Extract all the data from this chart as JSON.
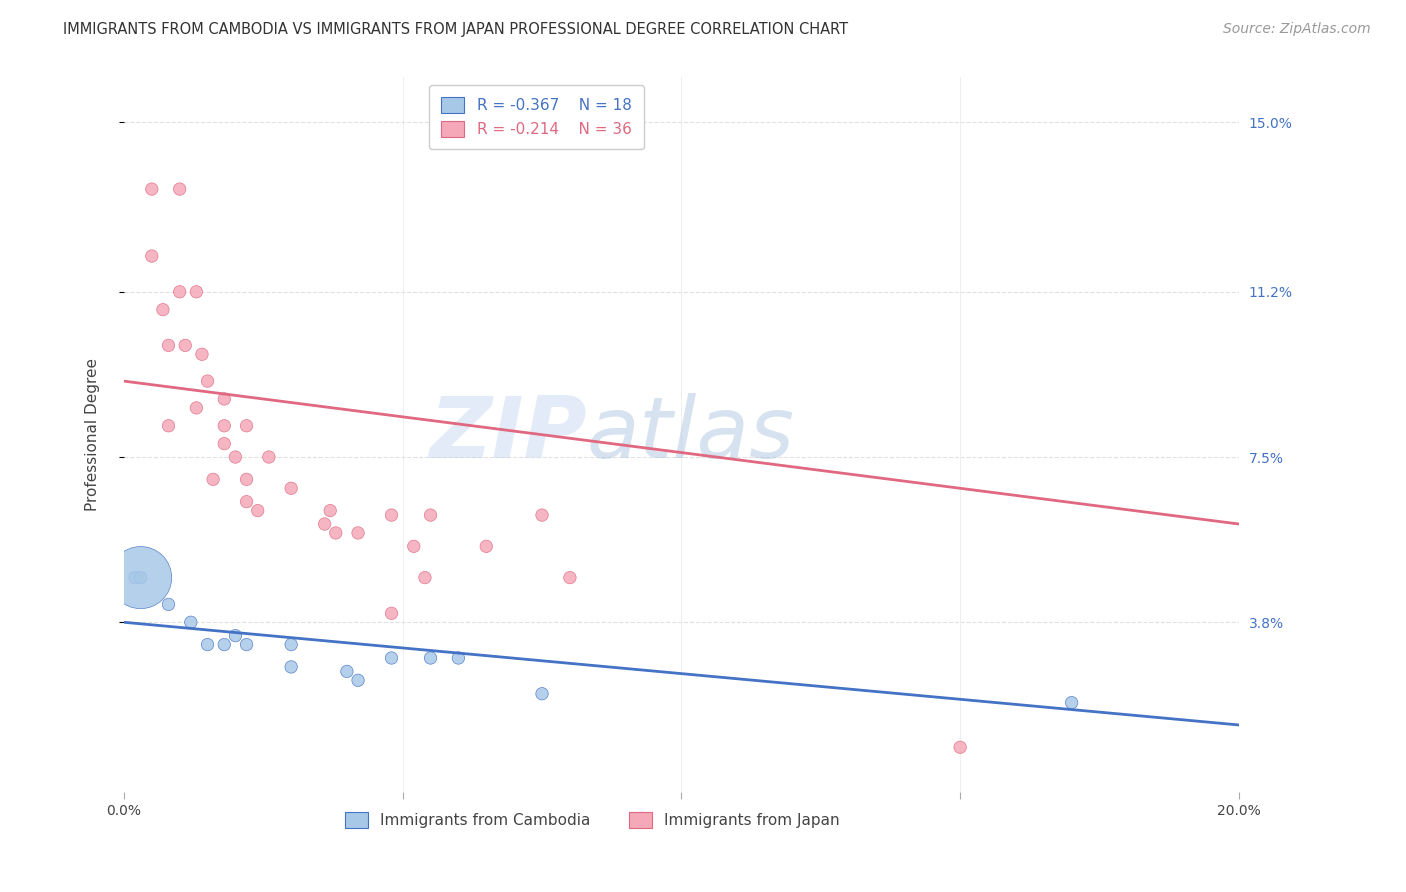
{
  "title": "IMMIGRANTS FROM CAMBODIA VS IMMIGRANTS FROM JAPAN PROFESSIONAL DEGREE CORRELATION CHART",
  "source": "Source: ZipAtlas.com",
  "ylabel": "Professional Degree",
  "x_min": 0.0,
  "x_max": 0.2,
  "y_min": 0.0,
  "y_max": 0.16,
  "yticks": [
    0.038,
    0.075,
    0.112,
    0.15
  ],
  "ytick_labels": [
    "3.8%",
    "7.5%",
    "11.2%",
    "15.0%"
  ],
  "watermark_zip": "ZIP",
  "watermark_atlas": "atlas",
  "legend_label1": "Immigrants from Cambodia",
  "legend_label2": "Immigrants from Japan",
  "color_cambodia": "#a8c8e8",
  "color_japan": "#f4a8b8",
  "line_color_cambodia": "#4472c4",
  "line_color_japan": "#e06880",
  "r_cambodia": "-0.367",
  "n_cambodia": "18",
  "r_japan": "-0.214",
  "n_japan": "36",
  "title_fontsize": 10.5,
  "axis_label_fontsize": 11,
  "tick_fontsize": 10,
  "legend_fontsize": 11,
  "source_fontsize": 10,
  "background_color": "#ffffff",
  "grid_color": "#e0e0e0",
  "japan_x": [
    0.005,
    0.01,
    0.005,
    0.007,
    0.01,
    0.013,
    0.008,
    0.011,
    0.014,
    0.008,
    0.015,
    0.018,
    0.013,
    0.018,
    0.018,
    0.02,
    0.022,
    0.016,
    0.022,
    0.026,
    0.022,
    0.024,
    0.03,
    0.036,
    0.037,
    0.038,
    0.042,
    0.048,
    0.052,
    0.055,
    0.065,
    0.075,
    0.048,
    0.054,
    0.15,
    0.08
  ],
  "japan_y": [
    0.135,
    0.135,
    0.12,
    0.108,
    0.112,
    0.112,
    0.1,
    0.1,
    0.098,
    0.082,
    0.092,
    0.088,
    0.086,
    0.082,
    0.078,
    0.075,
    0.082,
    0.07,
    0.07,
    0.075,
    0.065,
    0.063,
    0.068,
    0.06,
    0.063,
    0.058,
    0.058,
    0.062,
    0.055,
    0.062,
    0.055,
    0.062,
    0.04,
    0.048,
    0.01,
    0.048
  ],
  "cambodia_x": [
    0.002,
    0.003,
    0.008,
    0.012,
    0.015,
    0.018,
    0.02,
    0.022,
    0.03,
    0.03,
    0.04,
    0.042,
    0.048,
    0.055,
    0.06,
    0.075,
    0.17,
    0.003
  ],
  "cambodia_y": [
    0.048,
    0.048,
    0.042,
    0.038,
    0.033,
    0.033,
    0.035,
    0.033,
    0.033,
    0.028,
    0.027,
    0.025,
    0.03,
    0.03,
    0.03,
    0.022,
    0.02,
    0.048
  ],
  "cambodia_size": [
    80,
    80,
    80,
    80,
    80,
    80,
    80,
    80,
    80,
    80,
    80,
    80,
    80,
    80,
    80,
    80,
    80,
    2000
  ],
  "japan_size": [
    80,
    80,
    80,
    80,
    80,
    80,
    80,
    80,
    80,
    80,
    80,
    80,
    80,
    80,
    80,
    80,
    80,
    80,
    80,
    80,
    80,
    80,
    80,
    80,
    80,
    80,
    80,
    80,
    80,
    80,
    80,
    80,
    80,
    80,
    80,
    80
  ]
}
